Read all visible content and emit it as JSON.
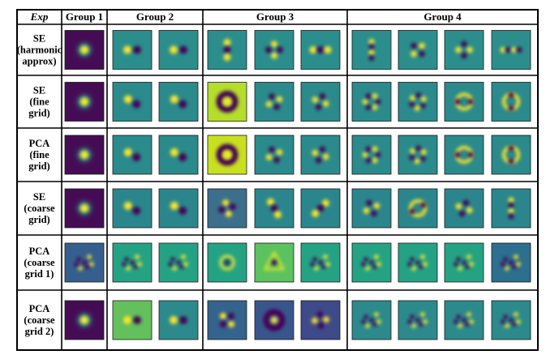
{
  "table": {
    "corner_label": "Exp",
    "groups": [
      {
        "label": "Group 1",
        "count": 1
      },
      {
        "label": "Group 2",
        "count": 2
      },
      {
        "label": "Group 3",
        "count": 3
      },
      {
        "label": "Group 4",
        "count": 4
      }
    ],
    "rows": [
      {
        "label_lines": [
          "SE",
          "(harmonic",
          "approx)"
        ],
        "bg": "#2b8e8c",
        "cells": [
          {
            "bg": "#450c55",
            "k": "s"
          },
          {
            "k": "dx",
            "a": 0
          },
          {
            "k": "dy",
            "a": 90
          },
          {
            "k": "xx",
            "a": 90
          },
          {
            "k": "xy",
            "a": 45
          },
          {
            "k": "xx",
            "a": 0
          },
          {
            "k": "xxx",
            "a": 90
          },
          {
            "k": "q",
            "a": 0
          },
          {
            "k": "q",
            "a": 45
          },
          {
            "k": "xxx",
            "a": 0
          }
        ]
      },
      {
        "label_lines": [
          "SE",
          "(fine",
          "grid)"
        ],
        "bg": "#2a8a8c",
        "cells": [
          {
            "bg": "#450c55",
            "k": "s"
          },
          {
            "k": "dx",
            "a": 30
          },
          {
            "k": "dy",
            "a": 120
          },
          {
            "bg": "#b5dd2b",
            "k": "ring"
          },
          {
            "k": "q",
            "a": 20
          },
          {
            "k": "q",
            "a": 65
          },
          {
            "k": "h",
            "a": 0
          },
          {
            "k": "h",
            "a": 36
          },
          {
            "k": "rd",
            "a": 90
          },
          {
            "k": "rd",
            "a": 0
          }
        ]
      },
      {
        "label_lines": [
          "PCA",
          "(fine",
          "grid)"
        ],
        "bg": "#2a8a8c",
        "cells": [
          {
            "bg": "#450c55",
            "k": "s"
          },
          {
            "k": "dx",
            "a": 30
          },
          {
            "k": "dy",
            "a": 120
          },
          {
            "bg": "#c9e021",
            "k": "ring"
          },
          {
            "k": "q",
            "a": 20
          },
          {
            "k": "q",
            "a": 65
          },
          {
            "k": "h",
            "a": 0
          },
          {
            "k": "h",
            "a": 36
          },
          {
            "k": "rd",
            "a": 90
          },
          {
            "k": "rd",
            "a": 0
          }
        ]
      },
      {
        "label_lines": [
          "SE",
          "(coarse",
          "grid)"
        ],
        "bg": "#2a868c",
        "cells": [
          {
            "bg": "#450c55",
            "k": "s"
          },
          {
            "k": "dx",
            "a": 30
          },
          {
            "k": "dy",
            "a": 120
          },
          {
            "bg": "#3b6f8c",
            "k": "xy",
            "a": 30
          },
          {
            "k": "xx",
            "a": 60
          },
          {
            "k": "xx",
            "a": 135
          },
          {
            "k": "q",
            "a": 20
          },
          {
            "k": "rd",
            "a": 60
          },
          {
            "k": "q",
            "a": 65
          },
          {
            "k": "xxx",
            "a": 90
          }
        ]
      },
      {
        "label_lines": [
          "PCA",
          "(coarse",
          "grid 1)"
        ],
        "bg": "#24a384",
        "cells": [
          {
            "bg": "#355f8d",
            "k": "n"
          },
          {
            "k": "n"
          },
          {
            "k": "n"
          },
          {
            "k": "ring2"
          },
          {
            "bg": "#5cc25f",
            "k": "tri"
          },
          {
            "k": "n"
          },
          {
            "k": "n"
          },
          {
            "k": "n"
          },
          {
            "k": "n"
          },
          {
            "bg": "#2c6f8e",
            "k": "n"
          }
        ]
      },
      {
        "label_lines": [
          "PCA",
          "(coarse",
          "grid 2)"
        ],
        "bg": "#2c8a8c",
        "cells": [
          {
            "bg": "#450c55",
            "k": "s"
          },
          {
            "bg": "#63c05c",
            "k": "dx",
            "a": 0
          },
          {
            "k": "dy",
            "a": 90
          },
          {
            "bg": "#34638d",
            "k": "xy",
            "a": 0
          },
          {
            "bg": "#39568c",
            "k": "ring"
          },
          {
            "bg": "#3e4a89",
            "k": "q",
            "a": 40
          },
          {
            "k": "n"
          },
          {
            "k": "n"
          },
          {
            "k": "n"
          },
          {
            "k": "n"
          }
        ]
      }
    ]
  },
  "colors": {
    "border": "#000000",
    "yellow": "#fde725",
    "dark": "#440154",
    "teal": "#21918c"
  }
}
